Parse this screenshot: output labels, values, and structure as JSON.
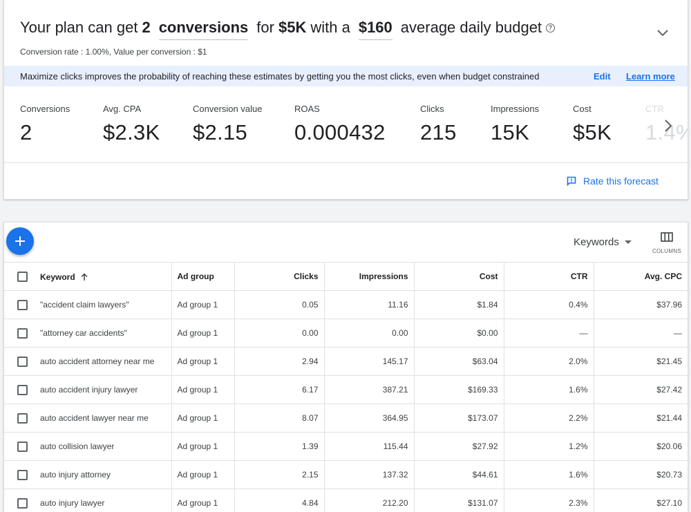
{
  "forecast": {
    "headline": {
      "prefix": "Your plan can get",
      "conversions_count": "2",
      "conversions_metric": "conversions",
      "for_text": "for",
      "budget_total": "$5K",
      "with_a": "with a",
      "daily_budget": "$160",
      "suffix": "average daily budget"
    },
    "subtext": "Conversion rate : 1.00%, Value per conversion : $1",
    "banner": {
      "message": "Maximize clicks improves the probability of reaching these estimates by getting you the most clicks, even when budget constrained",
      "edit": "Edit",
      "learn_more": "Learn more"
    },
    "metrics": [
      {
        "label": "Conversions",
        "value": "2"
      },
      {
        "label": "Avg. CPA",
        "value": "$2.3K"
      },
      {
        "label": "Conversion value",
        "value": "$2.15"
      },
      {
        "label": "ROAS",
        "value": "0.000432"
      },
      {
        "label": "Clicks",
        "value": "215"
      },
      {
        "label": "Impressions",
        "value": "15K"
      },
      {
        "label": "Cost",
        "value": "$5K"
      },
      {
        "label": "CTR",
        "value": "1.4%"
      }
    ],
    "rate_label": "Rate this forecast"
  },
  "keywords_table": {
    "view_selector": "Keywords",
    "columns_label": "COLUMNS",
    "headers": {
      "keyword": "Keyword",
      "ad_group": "Ad group",
      "clicks": "Clicks",
      "impressions": "Impressions",
      "cost": "Cost",
      "ctr": "CTR",
      "avg_cpc": "Avg. CPC"
    },
    "rows": [
      {
        "keyword": "\"accident claim lawyers\"",
        "ad_group": "Ad group 1",
        "clicks": "0.05",
        "impressions": "11.16",
        "cost": "$1.84",
        "ctr": "0.4%",
        "avg_cpc": "$37.96"
      },
      {
        "keyword": "\"attorney car accidents\"",
        "ad_group": "Ad group 1",
        "clicks": "0.00",
        "impressions": "0.00",
        "cost": "$0.00",
        "ctr": "—",
        "avg_cpc": "—"
      },
      {
        "keyword": "auto accident attorney near me",
        "ad_group": "Ad group 1",
        "clicks": "2.94",
        "impressions": "145.17",
        "cost": "$63.04",
        "ctr": "2.0%",
        "avg_cpc": "$21.45"
      },
      {
        "keyword": "auto accident injury lawyer",
        "ad_group": "Ad group 1",
        "clicks": "6.17",
        "impressions": "387.21",
        "cost": "$169.33",
        "ctr": "1.6%",
        "avg_cpc": "$27.42"
      },
      {
        "keyword": "auto accident lawyer near me",
        "ad_group": "Ad group 1",
        "clicks": "8.07",
        "impressions": "364.95",
        "cost": "$173.07",
        "ctr": "2.2%",
        "avg_cpc": "$21.44"
      },
      {
        "keyword": "auto collision lawyer",
        "ad_group": "Ad group 1",
        "clicks": "1.39",
        "impressions": "115.44",
        "cost": "$27.92",
        "ctr": "1.2%",
        "avg_cpc": "$20.06"
      },
      {
        "keyword": "auto injury attorney",
        "ad_group": "Ad group 1",
        "clicks": "2.15",
        "impressions": "137.32",
        "cost": "$44.61",
        "ctr": "1.6%",
        "avg_cpc": "$20.73"
      },
      {
        "keyword": "auto injury lawyer",
        "ad_group": "Ad group 1",
        "clicks": "4.84",
        "impressions": "212.20",
        "cost": "$131.07",
        "ctr": "2.3%",
        "avg_cpc": "$27.10"
      }
    ]
  }
}
